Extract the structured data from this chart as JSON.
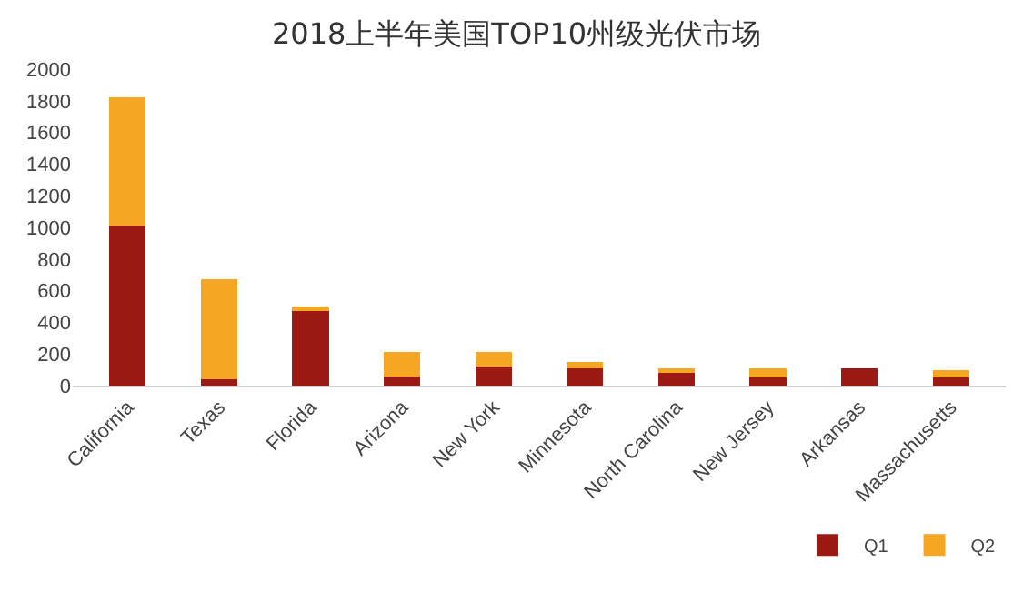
{
  "chart_data": {
    "type": "bar",
    "title": "2018上半年美国TOP10州级光伏市场",
    "stacked": true,
    "categories": [
      "California",
      "Texas",
      "Florida",
      "Arizona",
      "New York",
      "Minnesota",
      "North Carolina",
      "New Jersey",
      "Arkansas",
      "Massachusetts"
    ],
    "series": [
      {
        "name": "Q1",
        "color": "#9b1b14",
        "values": [
          1010,
          40,
          480,
          60,
          120,
          110,
          80,
          50,
          110,
          50
        ]
      },
      {
        "name": "Q2",
        "color": "#f5a623",
        "values": [
          810,
          630,
          20,
          150,
          90,
          40,
          30,
          60,
          0,
          50
        ]
      }
    ],
    "ylim": [
      0,
      2000
    ],
    "yticks": [
      0,
      200,
      400,
      600,
      800,
      1000,
      1200,
      1400,
      1600,
      1800,
      2000
    ],
    "legend": "bottom right"
  }
}
